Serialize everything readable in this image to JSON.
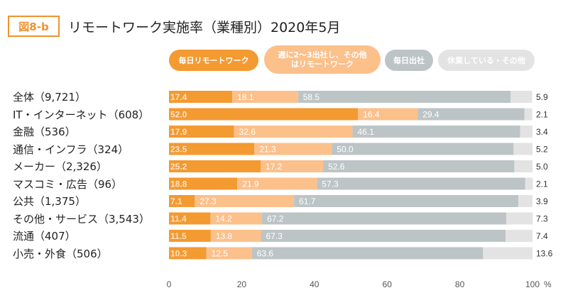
{
  "figure_label": "図8-b",
  "title": "リモートワーク実施率（業種別）2020年5月",
  "colors": {
    "accent": "#f0922d",
    "series": [
      "#f39a31",
      "#fcc08b",
      "#bcc4c6",
      "#e3e3e3"
    ],
    "value_text": [
      "#fbe2c4",
      "#ffffff",
      "#ffffff",
      "#333333"
    ],
    "legend_text": [
      "#ffffff",
      "#ffffff",
      "#ffffff",
      "#ffffff"
    ],
    "axis_text": "#555555"
  },
  "chart_data": {
    "type": "bar",
    "orientation": "horizontal",
    "stacked": true,
    "categories": [
      "全体（9,721）",
      "IT・インターネット（608）",
      "金融（536）",
      "通信・インフラ（324）",
      "メーカー（2,326）",
      "マスコミ・広告（96）",
      "公共（1,375）",
      "その他・サービス（3,543）",
      "流通（407）",
      "小売・外食（506）"
    ],
    "series": [
      {
        "name": "毎日リモートワーク",
        "values": [
          17.4,
          52.0,
          17.9,
          23.5,
          25.2,
          18.8,
          7.1,
          11.4,
          11.5,
          10.3
        ]
      },
      {
        "name": "週に2〜3出社し、その他はリモートワーク",
        "values": [
          18.1,
          16.4,
          32.6,
          21.3,
          17.2,
          21.9,
          27.3,
          14.2,
          13.8,
          12.5
        ]
      },
      {
        "name": "毎日出社",
        "values": [
          58.5,
          29.4,
          46.1,
          50.0,
          52.6,
          57.3,
          61.7,
          67.2,
          67.3,
          63.6
        ]
      },
      {
        "name": "休業している・その他",
        "values": [
          5.9,
          2.1,
          3.4,
          5.2,
          5.0,
          2.1,
          3.9,
          7.3,
          7.4,
          13.6
        ]
      }
    ],
    "value_labels": [
      [
        "17.4",
        "18.1",
        "58.5",
        "5.9"
      ],
      [
        "52.0",
        "16.4",
        "29.4",
        "2.1"
      ],
      [
        "17.9",
        "32.6",
        "46.1",
        "3.4"
      ],
      [
        "23.5",
        "21.3",
        "50.0",
        "5.2"
      ],
      [
        "25.2",
        "17.2",
        "52.6",
        "5.0"
      ],
      [
        "18.8",
        "21.9",
        "57.3",
        "2.1"
      ],
      [
        "7.1",
        "27.3",
        "61.7",
        "3.9"
      ],
      [
        "11.4",
        "14.2",
        "67.2",
        "7.3"
      ],
      [
        "11.5",
        "13.8",
        "67.3",
        "7.4"
      ],
      [
        "10.3",
        "12.5",
        "63.6",
        "13.6"
      ]
    ],
    "xlim": [
      0,
      100
    ],
    "xticks": [
      "0",
      "20",
      "40",
      "60",
      "80",
      "100"
    ],
    "x_unit": "%",
    "grid": false,
    "legend_position": "top"
  }
}
